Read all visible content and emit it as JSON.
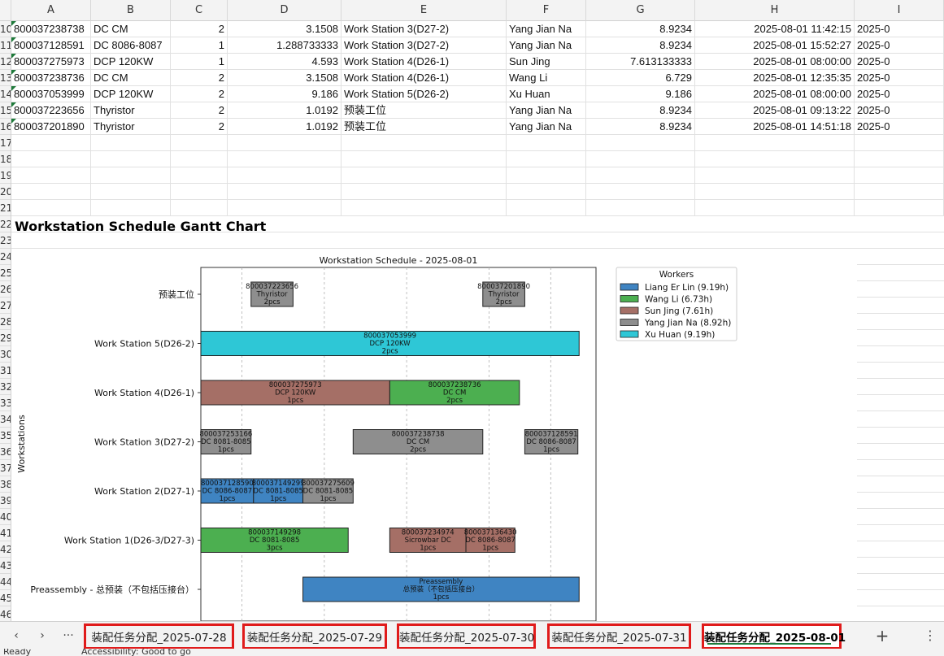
{
  "columns": [
    "A",
    "B",
    "C",
    "D",
    "E",
    "F",
    "G",
    "H",
    "I"
  ],
  "rows": {
    "numbers": [
      "10",
      "11",
      "12",
      "13",
      "14",
      "15",
      "16",
      "17",
      "18",
      "19",
      "20",
      "21",
      "22",
      "23",
      "24",
      "25",
      "26",
      "27",
      "28",
      "29",
      "30",
      "31",
      "32",
      "33",
      "34",
      "35",
      "36",
      "37",
      "38",
      "39",
      "40",
      "41",
      "42",
      "43",
      "44",
      "45",
      "46"
    ],
    "data": [
      {
        "a": "800037238738",
        "b": "DC CM",
        "c": "2",
        "d": "3.1508",
        "e": "Work Station 3(D27-2)",
        "f": "Yang Jian Na",
        "g": "8.9234",
        "h": "2025-08-01 11:42:15",
        "i": "2025-0"
      },
      {
        "a": "800037128591",
        "b": "DC 8086-8087",
        "c": "1",
        "d": "1.288733333",
        "e": "Work Station 3(D27-2)",
        "f": "Yang Jian Na",
        "g": "8.9234",
        "h": "2025-08-01 15:52:27",
        "i": "2025-0"
      },
      {
        "a": "800037275973",
        "b": "DCP 120KW",
        "c": "1",
        "d": "4.593",
        "e": "Work Station 4(D26-1)",
        "f": "Sun Jing",
        "g": "7.613133333",
        "h": "2025-08-01 08:00:00",
        "i": "2025-0"
      },
      {
        "a": "800037238736",
        "b": "DC CM",
        "c": "2",
        "d": "3.1508",
        "e": "Work Station 4(D26-1)",
        "f": "Wang Li",
        "g": "6.729",
        "h": "2025-08-01 12:35:35",
        "i": "2025-0"
      },
      {
        "a": "800037053999",
        "b": "DCP 120KW",
        "c": "2",
        "d": "9.186",
        "e": "Work Station 5(D26-2)",
        "f": "Xu Huan",
        "g": "9.186",
        "h": "2025-08-01 08:00:00",
        "i": "2025-0"
      },
      {
        "a": "800037223656",
        "b": "Thyristor",
        "c": "2",
        "d": "1.0192",
        "e": "预装工位",
        "f": "Yang Jian Na",
        "g": "8.9234",
        "h": "2025-08-01 09:13:22",
        "i": "2025-0"
      },
      {
        "a": "800037201890",
        "b": "Thyristor",
        "c": "2",
        "d": "1.0192",
        "e": "预装工位",
        "f": "Yang Jian Na",
        "g": "8.9234",
        "h": "2025-08-01 14:51:18",
        "i": "2025-0"
      }
    ]
  },
  "section_title": "Workstation Schedule Gantt Chart",
  "chart_data": {
    "type": "bar",
    "subtype": "gantt",
    "title": "Workstation Schedule - 2025-08-01",
    "ylabel": "Workstations",
    "xlim": [
      8.0,
      17.6
    ],
    "x_gridlines": [
      9,
      11,
      13,
      15,
      16.5
    ],
    "grid": true,
    "legend_placement": "top-right",
    "categories": [
      "Preassembly - 总预装（不包括压接台）",
      "Work Station 1(D26-3/D27-3)",
      "Work Station 2(D27-1)",
      "Work Station 3(D27-2)",
      "Work Station 4(D26-1)",
      "Work Station 5(D26-2)",
      "预装工位"
    ],
    "legend_title": "Workers",
    "series": [
      {
        "name": "Liang Er Lin (9.19h)",
        "worker": "Liang Er Lin",
        "color": "#3f84c2"
      },
      {
        "name": "Wang Li (6.73h)",
        "worker": "Wang Li",
        "color": "#4caf50"
      },
      {
        "name": "Sun Jing (7.61h)",
        "worker": "Sun Jing",
        "color": "#a56f66"
      },
      {
        "name": "Yang Jian Na (8.92h)",
        "worker": "Yang Jian Na",
        "color": "#8e8e8e"
      },
      {
        "name": "Xu Huan (9.19h)",
        "worker": "Xu Huan",
        "color": "#2ec7d6"
      }
    ],
    "tasks": [
      {
        "row": 6,
        "start": 9.22,
        "end": 10.24,
        "worker": "Yang Jian Na",
        "lines": [
          "800037223656",
          "Thyristor",
          "2pcs"
        ]
      },
      {
        "row": 6,
        "start": 14.85,
        "end": 15.87,
        "worker": "Yang Jian Na",
        "lines": [
          "800037201890",
          "Thyristor",
          "2pcs"
        ]
      },
      {
        "row": 5,
        "start": 8.0,
        "end": 17.19,
        "worker": "Xu Huan",
        "lines": [
          "800037053999",
          "DCP 120KW",
          "2pcs"
        ]
      },
      {
        "row": 4,
        "start": 8.0,
        "end": 12.59,
        "worker": "Sun Jing",
        "lines": [
          "800037275973",
          "DCP 120KW",
          "1pcs"
        ]
      },
      {
        "row": 4,
        "start": 12.59,
        "end": 15.74,
        "worker": "Wang Li",
        "lines": [
          "800037238736",
          "DC CM",
          "2pcs"
        ]
      },
      {
        "row": 3,
        "start": 8.0,
        "end": 9.22,
        "worker": "Yang Jian Na",
        "lines": [
          "800037253166",
          "DC 8081-8085",
          "1pcs"
        ]
      },
      {
        "row": 3,
        "start": 11.7,
        "end": 14.85,
        "worker": "Yang Jian Na",
        "lines": [
          "800037238738",
          "DC CM",
          "2pcs"
        ]
      },
      {
        "row": 3,
        "start": 15.87,
        "end": 17.16,
        "worker": "Yang Jian Na",
        "lines": [
          "800037128591",
          "DC 8086-8087",
          "1pcs"
        ]
      },
      {
        "row": 2,
        "start": 8.0,
        "end": 9.28,
        "worker": "Liang Er Lin",
        "lines": [
          "800037128590",
          "DC 8086-8087",
          "1pcs"
        ]
      },
      {
        "row": 2,
        "start": 9.28,
        "end": 10.48,
        "worker": "Liang Er Lin",
        "lines": [
          "800037149299",
          "DC 8081-8085",
          "1pcs"
        ]
      },
      {
        "row": 2,
        "start": 10.48,
        "end": 11.7,
        "worker": "Yang Jian Na",
        "lines": [
          "800037275609",
          "DC 8081-8085",
          "1pcs"
        ]
      },
      {
        "row": 1,
        "start": 8.0,
        "end": 11.58,
        "worker": "Wang Li",
        "lines": [
          "800037149298",
          "DC 8081-8085",
          "3pcs"
        ]
      },
      {
        "row": 1,
        "start": 12.59,
        "end": 14.44,
        "worker": "Sun Jing",
        "lines": [
          "800037234974",
          "Sicrowbar DC",
          "1pcs"
        ]
      },
      {
        "row": 1,
        "start": 14.44,
        "end": 15.63,
        "worker": "Sun Jing",
        "lines": [
          "800037136430",
          "DC 8086-8087",
          "1pcs"
        ]
      },
      {
        "row": 0,
        "start": 10.48,
        "end": 17.19,
        "worker": "Liang Er Lin",
        "lines": [
          "Preassembly",
          "总预装（不包括压接台）",
          "1pcs"
        ]
      }
    ]
  },
  "tabs": [
    {
      "label": "装配任务分配_2025-07-28",
      "active": false
    },
    {
      "label": "装配任务分配_2025-07-29",
      "active": false
    },
    {
      "label": "装配任务分配_2025-07-30",
      "active": false
    },
    {
      "label": "装配任务分配_2025-07-31",
      "active": false
    },
    {
      "label": "装配任务分配_2025-08-01",
      "active": true
    }
  ],
  "tabbar": {
    "prev": "‹",
    "next": "›",
    "more": "···",
    "add": "+",
    "overflow": "⋮"
  },
  "statusbar": {
    "ready": "Ready",
    "accessibility": "Accessibility: Good to go"
  },
  "colors": {
    "header_bg": "#f3f3f3",
    "tab_highlight": "#e01b1b",
    "active_underline": "#1e7a3a"
  }
}
